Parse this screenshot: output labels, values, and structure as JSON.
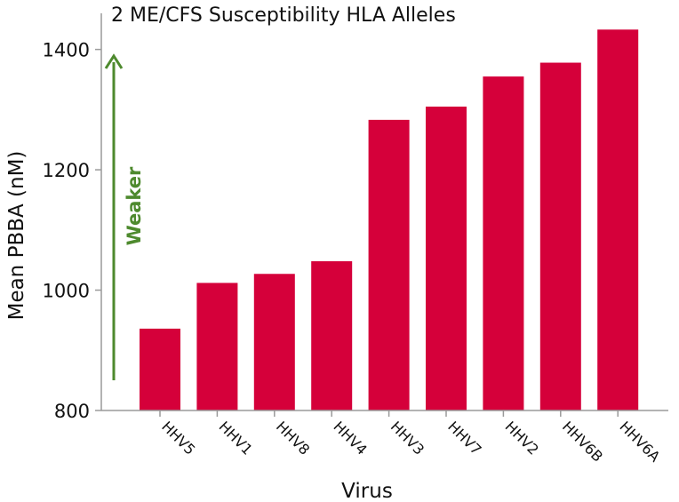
{
  "chart_data": {
    "type": "bar",
    "title": "2 ME/CFS Susceptibility HLA Alleles",
    "xlabel": "Virus",
    "ylabel": "Mean PBBA (nM)",
    "categories": [
      "HHV5",
      "HHV1",
      "HHV8",
      "HHV4",
      "HHV3",
      "HHV7",
      "HHV2",
      "HHV6B",
      "HHV6A"
    ],
    "values": [
      936,
      1012,
      1027,
      1048,
      1283,
      1305,
      1355,
      1378,
      1433
    ],
    "ylim": [
      800,
      1460
    ],
    "yticks": [
      800,
      1000,
      1200,
      1400
    ],
    "grid": false,
    "legend": "none",
    "bar_color": "#D5003A",
    "annotation": {
      "text": "Weaker",
      "color": "#4E8A2E"
    }
  }
}
